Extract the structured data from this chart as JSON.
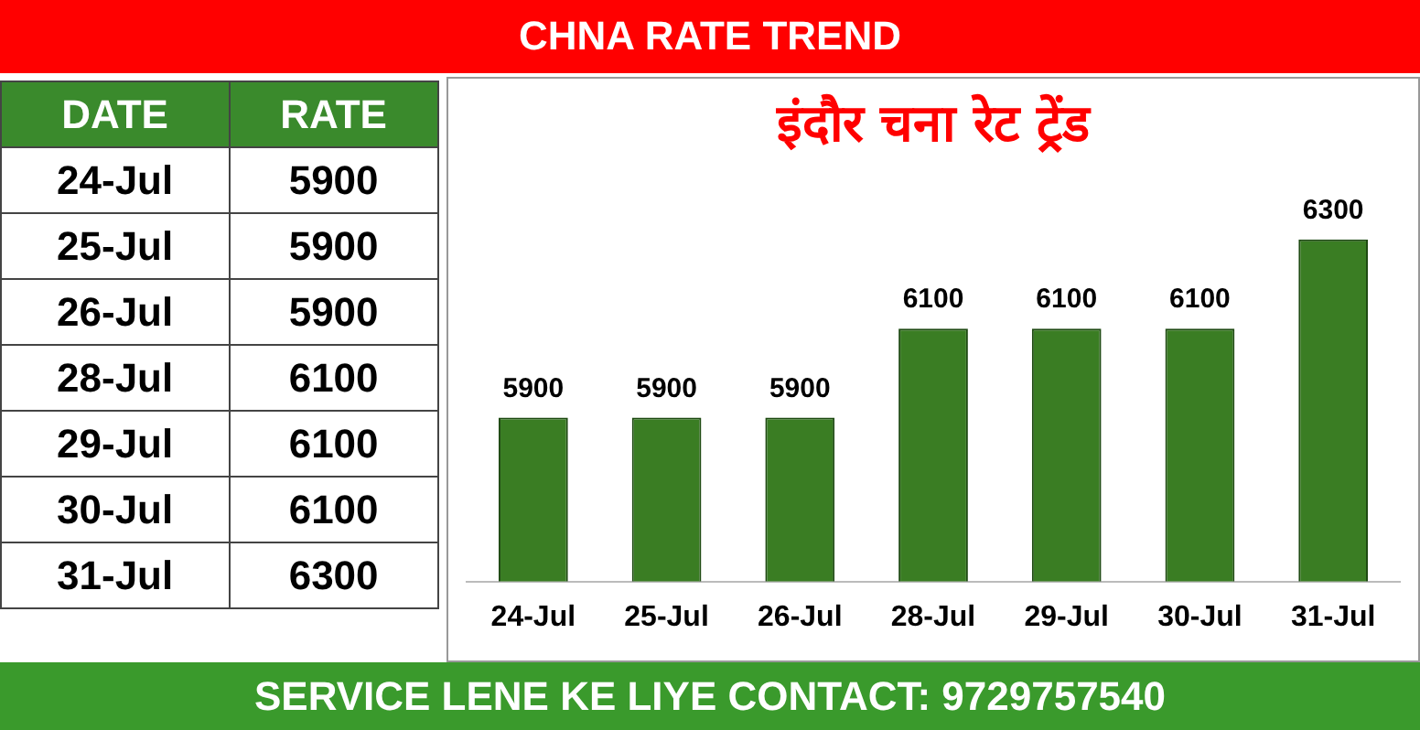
{
  "chart_data": {
    "type": "bar",
    "title": "CHNA RATE TREND",
    "subtitle": "इंदौर चना रेट ट्रेंड",
    "categories": [
      "24-Jul",
      "25-Jul",
      "26-Jul",
      "28-Jul",
      "29-Jul",
      "30-Jul",
      "31-Jul"
    ],
    "values": [
      5900,
      5900,
      5900,
      6100,
      6100,
      6100,
      6300
    ],
    "color": "#3a7d23",
    "data_labels": true,
    "annotations": [
      "DATE",
      "RATE",
      "5900",
      "5900",
      "5900",
      "6100",
      "6100",
      "6100",
      "6300",
      "SERVICE LENE KE LIYE CONTACT: 9729757540"
    ]
  }
}
